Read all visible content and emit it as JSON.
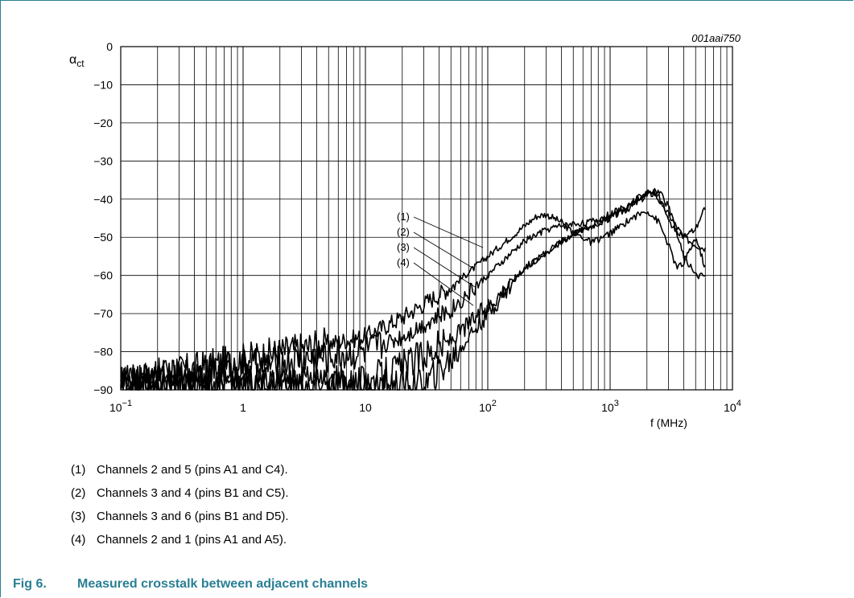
{
  "chart_data": {
    "type": "line",
    "figure_code": "001aai750",
    "ylabel_main": "α",
    "ylabel_sub": "ct",
    "xlabel": "f (MHz)",
    "x_scale": "log",
    "xlim": [
      0.1,
      10000
    ],
    "ylim": [
      -90,
      0
    ],
    "grid": true,
    "y_ticks": [
      "0",
      "−10",
      "−20",
      "−30",
      "−40",
      "−50",
      "−60",
      "−70",
      "−80",
      "−90"
    ],
    "x_ticks": [
      {
        "base": "10",
        "exp": "−1"
      },
      {
        "base": "1",
        "exp": ""
      },
      {
        "base": "10",
        "exp": ""
      },
      {
        "base": "10",
        "exp": "2"
      },
      {
        "base": "10",
        "exp": "3"
      },
      {
        "base": "10",
        "exp": "4"
      }
    ],
    "series": [
      {
        "name": "(1)",
        "x": [
          0.1,
          10,
          20,
          50,
          100,
          200,
          250,
          300,
          400,
          500,
          700,
          1000,
          1500,
          2000,
          2300,
          3000,
          4000,
          5000,
          6000
        ],
        "y": [
          -88,
          -76,
          -71,
          -63,
          -55,
          -47,
          -44.5,
          -44,
          -46,
          -49,
          -47,
          -45,
          -42,
          -39,
          -38.5,
          -44,
          -50,
          -52,
          -53
        ]
      },
      {
        "name": "(2)",
        "x": [
          0.1,
          10,
          20,
          50,
          100,
          200,
          300,
          400,
          500,
          700,
          1000,
          1500,
          2000,
          2200,
          2500,
          3000,
          4000,
          5000,
          6000
        ],
        "y": [
          -88,
          -80,
          -76,
          -69,
          -60,
          -51,
          -48,
          -47,
          -46.5,
          -46,
          -44,
          -41,
          -38.5,
          -38,
          -39,
          -46,
          -50,
          -48,
          -42
        ]
      },
      {
        "name": "(3)",
        "x": [
          0.1,
          10,
          20,
          50,
          100,
          200,
          300,
          500,
          700,
          1000,
          1500,
          2000,
          2500,
          3000,
          4000,
          5000,
          6000
        ],
        "y": [
          -88,
          -88,
          -84,
          -77,
          -68,
          -58,
          -54,
          -49,
          -47,
          -45,
          -41,
          -38,
          -38,
          -42,
          -55,
          -60,
          -60
        ]
      },
      {
        "name": "(4)",
        "x": [
          0.1,
          10,
          30,
          50,
          70,
          100,
          200,
          300,
          500,
          600,
          700,
          1000,
          1500,
          2000,
          2500,
          3000,
          3500,
          4000,
          5000,
          6000
        ],
        "y": [
          -88,
          -89,
          -89,
          -82,
          -76,
          -70,
          -58,
          -54,
          -49,
          -50,
          -51.5,
          -49,
          -45,
          -43,
          -46,
          -52,
          -58,
          -57,
          -50,
          -58
        ]
      }
    ]
  },
  "notes": [
    {
      "num": "(1)",
      "text": "Channels 2 and 5 (pins A1 and C4)."
    },
    {
      "num": "(2)",
      "text": "Channels 3 and 4 (pins B1 and C5)."
    },
    {
      "num": "(3)",
      "text": "Channels 3 and 6 (pins B1 and D5)."
    },
    {
      "num": "(4)",
      "text": "Channels 2 and 1 (pins A1 and A5)."
    }
  ],
  "caption": {
    "figure": "Fig 6.",
    "title": "Measured crosstalk between adjacent channels"
  }
}
